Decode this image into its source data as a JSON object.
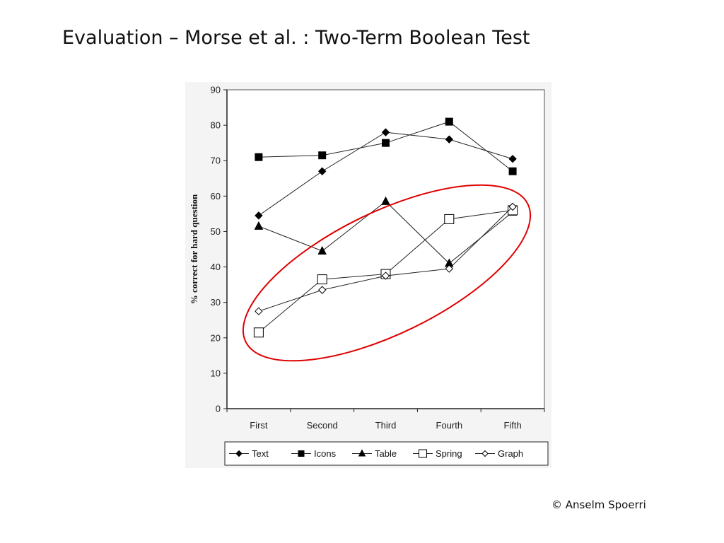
{
  "slide": {
    "title": "Evaluation – Morse et al. : Two-Term Boolean Test",
    "footer": "© Anselm Spoerri"
  },
  "chart_data": {
    "type": "line",
    "title": "",
    "xlabel": "",
    "ylabel": "% correct for hard question",
    "ylim": [
      0,
      90
    ],
    "yticks": [
      0,
      10,
      20,
      30,
      40,
      50,
      60,
      70,
      80,
      90
    ],
    "categories": [
      "First",
      "Second",
      "Third",
      "Fourth",
      "Fifth"
    ],
    "grid": false,
    "legend_position": "bottom",
    "series": [
      {
        "name": "Text",
        "marker": "diamond-filled",
        "values": [
          54.5,
          67,
          78,
          76,
          70.5
        ]
      },
      {
        "name": "Icons",
        "marker": "square-filled",
        "values": [
          71,
          71.5,
          75,
          81,
          67
        ]
      },
      {
        "name": "Table",
        "marker": "triangle-filled",
        "values": [
          51.5,
          44.5,
          58.5,
          41,
          55.5
        ]
      },
      {
        "name": "Spring",
        "marker": "square-open",
        "values": [
          21.5,
          36.5,
          38,
          53.5,
          56
        ]
      },
      {
        "name": "Graph",
        "marker": "diamond-open",
        "values": [
          27.5,
          33.5,
          37.5,
          39.5,
          57
        ]
      }
    ],
    "annotation": {
      "type": "ellipse",
      "color": "#e00000",
      "encloses": [
        "Table",
        "Spring",
        "Graph"
      ]
    }
  }
}
